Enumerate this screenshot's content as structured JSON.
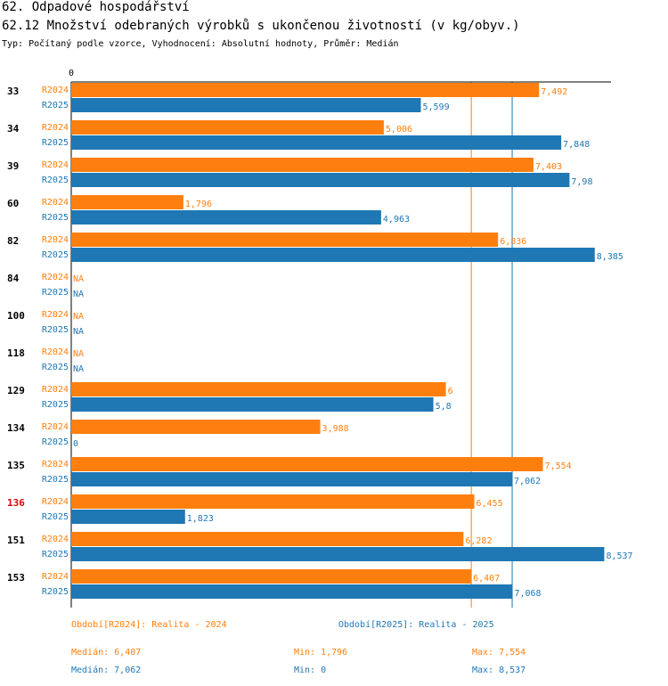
{
  "header": {
    "section_title": "62. Odpadové hospodářství",
    "chart_title": "62.12 Množství odebraných výrobků s ukončenou životností (v kg/obyv.)",
    "subtitle": "Typ: Počítaný podle vzorce, Vyhodnocení: Absolutní hodnoty, Průměr: Medián"
  },
  "chart_data": {
    "type": "bar",
    "orientation": "horizontal",
    "title": "62.12 Množství odebraných výrobků s ukončenou životností (v kg/obyv.)",
    "axis_zero_label": "0",
    "xlim": [
      0,
      9
    ],
    "categories": [
      "33",
      "34",
      "39",
      "60",
      "82",
      "84",
      "100",
      "118",
      "129",
      "134",
      "135",
      "136",
      "151",
      "153"
    ],
    "highlight_category": "136",
    "series": [
      {
        "name": "R2024",
        "color": "#ff7f0e",
        "values": [
          7.492,
          5.006,
          7.403,
          1.796,
          6.836,
          null,
          null,
          null,
          6,
          3.988,
          7.554,
          6.455,
          6.282,
          6.407
        ],
        "labels": [
          "7,492",
          "5,006",
          "7,403",
          "1,796",
          "6,836",
          "NA",
          "NA",
          "NA",
          "6",
          "3,988",
          "7,554",
          "6,455",
          "6,282",
          "6,407"
        ],
        "median": 6.407
      },
      {
        "name": "R2025",
        "color": "#1f77b4",
        "values": [
          5.599,
          7.848,
          7.98,
          4.963,
          8.385,
          null,
          null,
          null,
          5.8,
          0,
          7.062,
          1.823,
          8.537,
          7.068
        ],
        "labels": [
          "5,599",
          "7,848",
          "7,98",
          "4,963",
          "8,385",
          "NA",
          "NA",
          "NA",
          "5,8",
          "0",
          "7,062",
          "1,823",
          "8,537",
          "7,068"
        ],
        "median": 7.062
      }
    ]
  },
  "legend": {
    "r2024": "Období[R2024]: Realita - 2024",
    "r2025": "Období[R2025]: Realita - 2025"
  },
  "stats": {
    "r2024": {
      "median": "Medián: 6,407",
      "min": "Min: 1,796",
      "max": "Max: 7,554"
    },
    "r2025": {
      "median": "Medián: 7,062",
      "min": "Min: 0",
      "max": "Max: 8,537"
    }
  }
}
